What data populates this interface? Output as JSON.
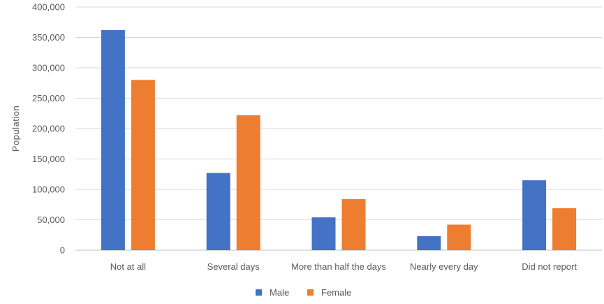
{
  "chart_data": {
    "type": "bar",
    "title": "",
    "xlabel": "",
    "ylabel": "Population",
    "ylim": [
      0,
      400000
    ],
    "yticks": [
      "0",
      "50,000",
      "100,000",
      "150,000",
      "200,000",
      "250,000",
      "300,000",
      "350,000",
      "400,000"
    ],
    "ytick_values": [
      0,
      50000,
      100000,
      150000,
      200000,
      250000,
      300000,
      350000,
      400000
    ],
    "categories": [
      "Not at all",
      "Several days",
      "More than half the days",
      "Nearly every day",
      "Did not report"
    ],
    "series": [
      {
        "name": "Male",
        "color": "#4472C4",
        "values": [
          362000,
          127000,
          54000,
          23000,
          115000
        ]
      },
      {
        "name": "Female",
        "color": "#ED7D31",
        "values": [
          280000,
          222000,
          84000,
          42000,
          69000
        ]
      }
    ],
    "grid": true,
    "legend": "bottom"
  }
}
